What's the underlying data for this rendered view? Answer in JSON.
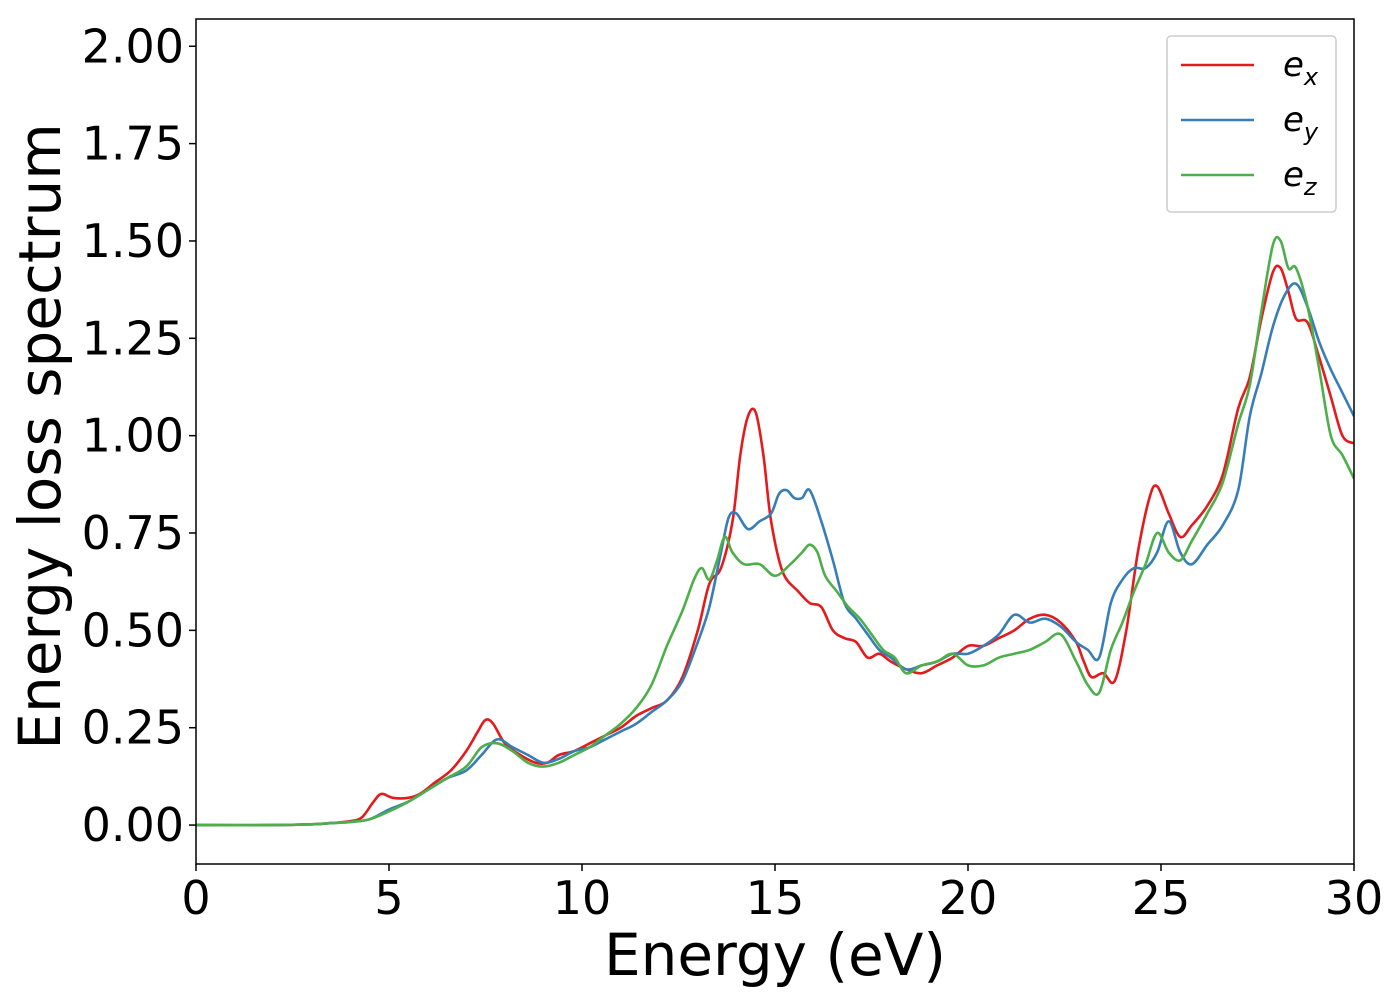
{
  "chart_data": {
    "type": "line",
    "title": "",
    "xlabel": "Energy (eV)",
    "ylabel": "Energy loss spectrum",
    "xlim": [
      0,
      30
    ],
    "ylim": [
      -0.1,
      2.07
    ],
    "xticks": [
      0,
      5,
      10,
      15,
      20,
      25,
      30
    ],
    "xtick_labels": [
      "0",
      "5",
      "10",
      "15",
      "20",
      "25",
      "30"
    ],
    "yticks": [
      0,
      0.25,
      0.5,
      0.75,
      1.0,
      1.25,
      1.5,
      1.75,
      2.0
    ],
    "ytick_labels": [
      "0.00",
      "0.25",
      "0.50",
      "0.75",
      "1.00",
      "1.25",
      "1.50",
      "1.75",
      "2.00"
    ],
    "grid": false,
    "legend_position": "top-right",
    "series": [
      {
        "name": "e_x",
        "label_base": "e",
        "label_sub": "x",
        "color": "#e41a1c",
        "x": [
          0,
          2,
          3,
          3.5,
          4,
          4.3,
          4.6,
          4.8,
          5.1,
          5.5,
          5.8,
          6.2,
          6.6,
          7.0,
          7.3,
          7.5,
          7.7,
          8.0,
          8.4,
          8.8,
          9.1,
          9.4,
          9.8,
          10.2,
          10.6,
          11.0,
          11.4,
          11.8,
          12.2,
          12.6,
          13.0,
          13.3,
          13.6,
          13.9,
          14.1,
          14.3,
          14.5,
          14.7,
          14.9,
          15.2,
          15.6,
          15.9,
          16.2,
          16.5,
          16.8,
          17.1,
          17.4,
          17.7,
          18.0,
          18.4,
          18.8,
          19.2,
          19.6,
          20.0,
          20.4,
          20.8,
          21.2,
          21.6,
          22.0,
          22.4,
          22.8,
          23.0,
          23.2,
          23.5,
          23.8,
          24.1,
          24.4,
          24.7,
          24.9,
          25.2,
          25.5,
          25.8,
          26.2,
          26.6,
          27.0,
          27.3,
          27.6,
          27.9,
          28.1,
          28.3,
          28.5,
          28.8,
          29.1,
          29.4,
          29.7,
          30.0
        ],
        "values": [
          0.0,
          0.0,
          0.002,
          0.005,
          0.01,
          0.02,
          0.06,
          0.08,
          0.07,
          0.07,
          0.08,
          0.11,
          0.14,
          0.19,
          0.24,
          0.27,
          0.26,
          0.21,
          0.18,
          0.16,
          0.16,
          0.18,
          0.19,
          0.21,
          0.23,
          0.25,
          0.28,
          0.3,
          0.32,
          0.38,
          0.5,
          0.62,
          0.66,
          0.78,
          0.95,
          1.05,
          1.06,
          0.95,
          0.78,
          0.65,
          0.6,
          0.57,
          0.56,
          0.5,
          0.48,
          0.47,
          0.43,
          0.44,
          0.42,
          0.4,
          0.39,
          0.41,
          0.43,
          0.46,
          0.46,
          0.48,
          0.5,
          0.53,
          0.54,
          0.52,
          0.47,
          0.42,
          0.38,
          0.39,
          0.37,
          0.5,
          0.7,
          0.84,
          0.87,
          0.8,
          0.74,
          0.77,
          0.82,
          0.9,
          1.07,
          1.15,
          1.3,
          1.42,
          1.43,
          1.37,
          1.3,
          1.29,
          1.2,
          1.1,
          1.0,
          0.98
        ]
      },
      {
        "name": "e_y",
        "label_base": "e",
        "label_sub": "y",
        "color": "#377eb8",
        "x": [
          0,
          2,
          3,
          3.5,
          4,
          4.5,
          5.0,
          5.5,
          6.0,
          6.5,
          7.0,
          7.4,
          7.8,
          8.2,
          8.6,
          9.0,
          9.4,
          9.8,
          10.2,
          10.6,
          11.0,
          11.4,
          11.8,
          12.2,
          12.6,
          13.0,
          13.3,
          13.6,
          13.8,
          14.0,
          14.3,
          14.6,
          14.9,
          15.1,
          15.3,
          15.5,
          15.7,
          15.9,
          16.2,
          16.5,
          16.8,
          17.1,
          17.4,
          17.7,
          18.0,
          18.4,
          18.8,
          19.2,
          19.6,
          20.0,
          20.4,
          20.8,
          21.2,
          21.6,
          22.0,
          22.4,
          22.8,
          23.1,
          23.4,
          23.7,
          24.0,
          24.3,
          24.6,
          24.9,
          25.2,
          25.5,
          25.8,
          26.2,
          26.6,
          27.0,
          27.3,
          27.6,
          27.9,
          28.2,
          28.5,
          28.8,
          29.1,
          29.4,
          29.7,
          30.0
        ],
        "values": [
          0.0,
          0.0,
          0.002,
          0.005,
          0.008,
          0.015,
          0.04,
          0.06,
          0.09,
          0.12,
          0.14,
          0.18,
          0.22,
          0.2,
          0.18,
          0.16,
          0.17,
          0.19,
          0.2,
          0.22,
          0.24,
          0.26,
          0.29,
          0.32,
          0.37,
          0.47,
          0.56,
          0.7,
          0.79,
          0.8,
          0.76,
          0.78,
          0.8,
          0.85,
          0.86,
          0.84,
          0.84,
          0.86,
          0.78,
          0.68,
          0.57,
          0.53,
          0.49,
          0.45,
          0.43,
          0.4,
          0.41,
          0.42,
          0.44,
          0.44,
          0.46,
          0.49,
          0.54,
          0.52,
          0.53,
          0.51,
          0.47,
          0.45,
          0.43,
          0.57,
          0.63,
          0.66,
          0.66,
          0.7,
          0.78,
          0.7,
          0.67,
          0.72,
          0.77,
          0.86,
          1.05,
          1.16,
          1.28,
          1.36,
          1.39,
          1.33,
          1.24,
          1.17,
          1.11,
          1.05
        ]
      },
      {
        "name": "e_z",
        "label_base": "e",
        "label_sub": "z",
        "color": "#4daf4a",
        "x": [
          0,
          2,
          3,
          3.5,
          4,
          4.5,
          5.0,
          5.5,
          6.0,
          6.5,
          7.0,
          7.4,
          7.8,
          8.2,
          8.6,
          9.0,
          9.4,
          9.8,
          10.2,
          10.6,
          11.0,
          11.4,
          11.8,
          12.2,
          12.6,
          12.9,
          13.1,
          13.3,
          13.5,
          13.7,
          13.9,
          14.2,
          14.6,
          15.0,
          15.4,
          15.7,
          15.9,
          16.1,
          16.3,
          16.6,
          16.9,
          17.2,
          17.5,
          17.8,
          18.1,
          18.4,
          18.8,
          19.2,
          19.6,
          20.0,
          20.4,
          20.8,
          21.2,
          21.6,
          22.0,
          22.4,
          22.8,
          23.1,
          23.4,
          23.7,
          24.0,
          24.3,
          24.6,
          24.9,
          25.2,
          25.5,
          25.8,
          26.2,
          26.6,
          27.0,
          27.3,
          27.6,
          27.9,
          28.1,
          28.3,
          28.5,
          28.8,
          29.1,
          29.4,
          29.7,
          30.0
        ],
        "values": [
          0.0,
          0.0,
          0.002,
          0.005,
          0.008,
          0.015,
          0.035,
          0.06,
          0.09,
          0.12,
          0.15,
          0.2,
          0.21,
          0.19,
          0.16,
          0.15,
          0.16,
          0.18,
          0.2,
          0.23,
          0.26,
          0.3,
          0.36,
          0.46,
          0.55,
          0.63,
          0.66,
          0.63,
          0.68,
          0.74,
          0.7,
          0.67,
          0.67,
          0.64,
          0.67,
          0.7,
          0.72,
          0.7,
          0.64,
          0.6,
          0.56,
          0.53,
          0.49,
          0.45,
          0.43,
          0.39,
          0.41,
          0.42,
          0.44,
          0.41,
          0.41,
          0.43,
          0.44,
          0.45,
          0.47,
          0.49,
          0.42,
          0.36,
          0.34,
          0.45,
          0.52,
          0.6,
          0.67,
          0.75,
          0.7,
          0.68,
          0.73,
          0.8,
          0.88,
          1.03,
          1.13,
          1.32,
          1.49,
          1.5,
          1.43,
          1.43,
          1.33,
          1.17,
          1.0,
          0.95,
          0.89
        ]
      }
    ]
  }
}
